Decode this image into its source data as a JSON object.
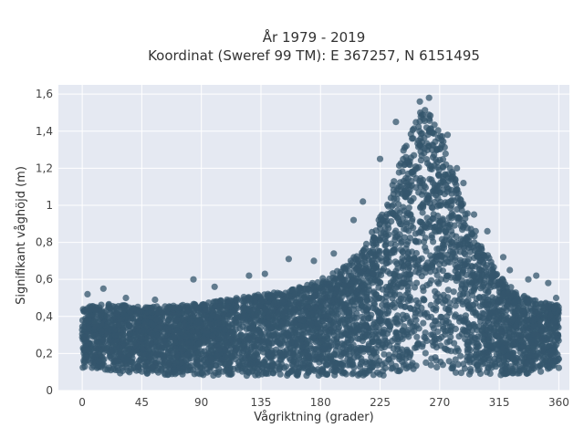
{
  "chart_data": {
    "type": "scatter",
    "title": "År 1979 - 2019",
    "subtitle": "Koordinat (Sweref 99 TM): E 367257, N 6151495",
    "xlabel": "Vågriktning (grader)",
    "ylabel": "Signifikant våghöjd (m)",
    "xlim": [
      -18,
      368
    ],
    "ylim": [
      0,
      1.65
    ],
    "x_ticks": [
      0,
      45,
      90,
      135,
      180,
      225,
      270,
      315,
      360
    ],
    "x_tick_labels": [
      "0",
      "45",
      "90",
      "135",
      "180",
      "225",
      "270",
      "315",
      "360"
    ],
    "y_ticks": [
      0,
      0.2,
      0.4,
      0.6,
      0.8,
      1,
      1.2,
      1.4,
      1.6
    ],
    "y_tick_labels": [
      "0",
      "0,2",
      "0,4",
      "0,6",
      "0,8",
      "1",
      "1,2",
      "1,4",
      "1,6"
    ],
    "grid": true,
    "background_color": "#e5e9f2",
    "marker_color": "#34566c",
    "envelope": {
      "x": [
        0,
        20,
        45,
        90,
        135,
        160,
        180,
        200,
        215,
        230,
        245,
        255,
        262,
        270,
        280,
        290,
        300,
        315,
        330,
        345,
        360
      ],
      "y_upper": [
        0.45,
        0.47,
        0.45,
        0.47,
        0.52,
        0.55,
        0.6,
        0.68,
        0.8,
        1.02,
        1.35,
        1.5,
        1.53,
        1.42,
        1.18,
        0.98,
        0.82,
        0.62,
        0.52,
        0.48,
        0.46
      ],
      "y_lower": [
        0.12,
        0.1,
        0.08,
        0.08,
        0.08,
        0.08,
        0.08,
        0.08,
        0.08,
        0.08,
        0.1,
        0.12,
        0.12,
        0.12,
        0.1,
        0.08,
        0.08,
        0.08,
        0.08,
        0.1,
        0.12
      ]
    },
    "outliers": [
      {
        "x": 4,
        "y": 0.52
      },
      {
        "x": 16,
        "y": 0.55
      },
      {
        "x": 33,
        "y": 0.5
      },
      {
        "x": 55,
        "y": 0.49
      },
      {
        "x": 84,
        "y": 0.6
      },
      {
        "x": 100,
        "y": 0.56
      },
      {
        "x": 126,
        "y": 0.62
      },
      {
        "x": 138,
        "y": 0.63
      },
      {
        "x": 156,
        "y": 0.71
      },
      {
        "x": 175,
        "y": 0.7
      },
      {
        "x": 190,
        "y": 0.74
      },
      {
        "x": 205,
        "y": 0.92
      },
      {
        "x": 212,
        "y": 1.02
      },
      {
        "x": 225,
        "y": 1.25
      },
      {
        "x": 237,
        "y": 1.45
      },
      {
        "x": 262,
        "y": 1.58
      },
      {
        "x": 255,
        "y": 1.56
      },
      {
        "x": 276,
        "y": 1.38
      },
      {
        "x": 283,
        "y": 1.2
      },
      {
        "x": 288,
        "y": 1.12
      },
      {
        "x": 296,
        "y": 0.95
      },
      {
        "x": 306,
        "y": 0.86
      },
      {
        "x": 318,
        "y": 0.72
      },
      {
        "x": 323,
        "y": 0.65
      },
      {
        "x": 337,
        "y": 0.6
      },
      {
        "x": 343,
        "y": 0.62
      },
      {
        "x": 352,
        "y": 0.58
      },
      {
        "x": 358,
        "y": 0.5
      }
    ]
  }
}
